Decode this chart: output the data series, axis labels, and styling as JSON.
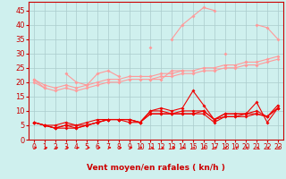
{
  "x": [
    0,
    1,
    2,
    3,
    4,
    5,
    6,
    7,
    8,
    9,
    10,
    11,
    12,
    13,
    14,
    15,
    16,
    17,
    18,
    19,
    20,
    21,
    22,
    23
  ],
  "light_line1": [
    21,
    18,
    null,
    23,
    20,
    19,
    23,
    24,
    22,
    null,
    null,
    32,
    null,
    35,
    40,
    43,
    46,
    45,
    null,
    null,
    null,
    40,
    39,
    35
  ],
  "light_line2": [
    null,
    null,
    null,
    null,
    null,
    null,
    null,
    null,
    null,
    null,
    null,
    21,
    21,
    24,
    24,
    null,
    null,
    null,
    30,
    null,
    27,
    null,
    null,
    null
  ],
  "light_smooth1": [
    21,
    19,
    18,
    19,
    18,
    19,
    20,
    21,
    21,
    22,
    22,
    22,
    23,
    23,
    24,
    24,
    25,
    25,
    26,
    26,
    27,
    27,
    28,
    29
  ],
  "light_smooth2": [
    20,
    18,
    17,
    18,
    17,
    18,
    19,
    20,
    20,
    21,
    21,
    21,
    22,
    22,
    23,
    23,
    24,
    24,
    25,
    25,
    26,
    26,
    27,
    28
  ],
  "dark_line1": [
    6,
    5,
    4,
    5,
    5,
    5,
    6,
    7,
    7,
    7,
    6,
    10,
    11,
    10,
    11,
    17,
    12,
    7,
    9,
    9,
    9,
    13,
    6,
    11
  ],
  "dark_line2": [
    6,
    5,
    5,
    6,
    5,
    6,
    7,
    7,
    7,
    7,
    6,
    10,
    10,
    9,
    10,
    10,
    10,
    7,
    9,
    9,
    9,
    10,
    8,
    12
  ],
  "dark_line3": [
    6,
    5,
    4,
    5,
    4,
    5,
    6,
    7,
    7,
    7,
    6,
    9,
    9,
    9,
    9,
    9,
    10,
    7,
    8,
    8,
    9,
    9,
    8,
    11
  ],
  "dark_line4": [
    6,
    5,
    4,
    4,
    4,
    5,
    6,
    7,
    7,
    6,
    6,
    9,
    9,
    9,
    9,
    9,
    9,
    6,
    8,
    8,
    8,
    9,
    8,
    11
  ],
  "light_color": "#ff9999",
  "dark_color": "#ee0000",
  "tick_color": "#cc0000",
  "bg_color": "#cff0ee",
  "grid_color": "#aacccc",
  "xlabel": "Vent moyen/en rafales ( kn/h )",
  "yticks": [
    0,
    5,
    10,
    15,
    20,
    25,
    30,
    35,
    40,
    45
  ],
  "xticks": [
    0,
    1,
    2,
    3,
    4,
    5,
    6,
    7,
    8,
    9,
    10,
    11,
    12,
    13,
    14,
    15,
    16,
    17,
    18,
    19,
    20,
    21,
    22,
    23
  ],
  "ymin": 0,
  "ymax": 48,
  "arrow_angles": [
    90,
    90,
    90,
    90,
    90,
    90,
    90,
    90,
    90,
    90,
    45,
    90,
    90,
    90,
    45,
    45,
    45,
    45,
    45,
    45,
    45,
    45,
    45,
    45
  ]
}
